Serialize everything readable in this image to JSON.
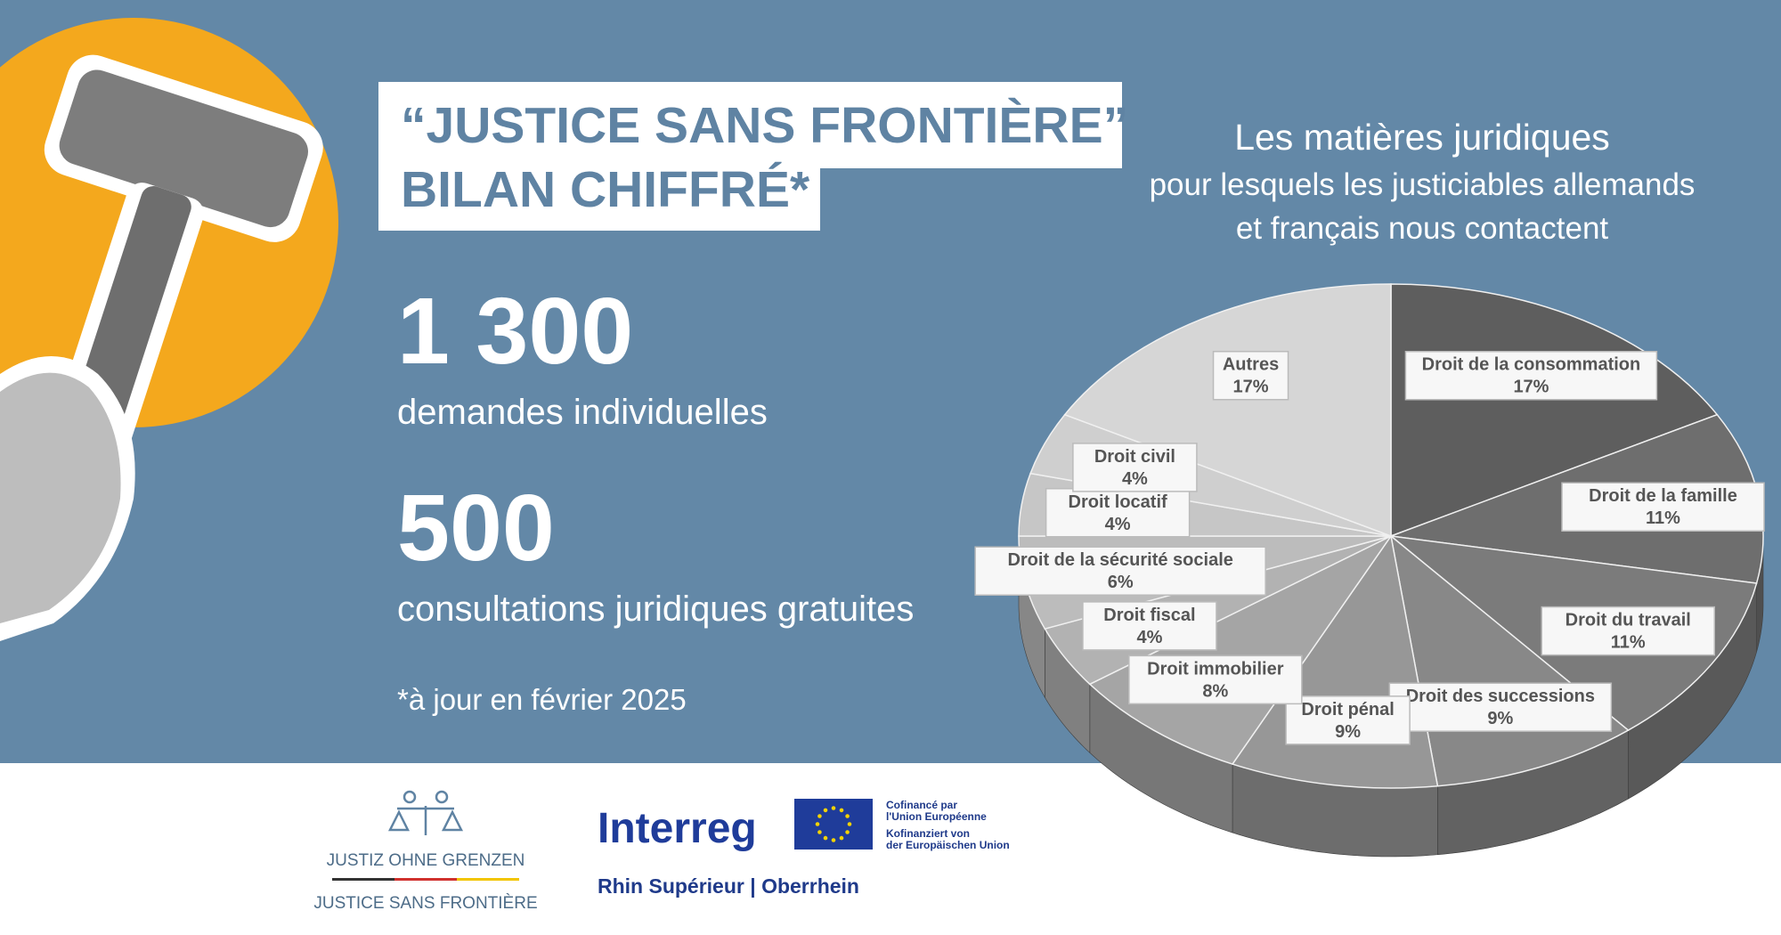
{
  "header": {
    "title_lines": [
      "“JUSTICE SANS FRONTIÈRE”",
      "BILAN CHIFFRÉ*"
    ]
  },
  "stats": [
    {
      "number": "1 300",
      "label": "demandes individuelles"
    },
    {
      "number": "500",
      "label": "consultations juridiques gratuites"
    }
  ],
  "note": "*à jour en février 2025",
  "chart_data": {
    "type": "pie3d",
    "title_lines": [
      "Les matières juridiques",
      "pour lesquels les justiciables allemands",
      "et français nous contactent"
    ],
    "categories": [
      "Droit de la consommation",
      "Droit de la famille",
      "Droit du travail",
      "Droit des successions",
      "Droit pénal",
      "Droit immobilier",
      "Droit fiscal",
      "Droit de la sécurité sociale",
      "Droit locatif",
      "Droit civil",
      "Autres"
    ],
    "values": [
      17,
      11,
      11,
      9,
      9,
      8,
      4,
      6,
      4,
      4,
      17
    ],
    "value_labels": [
      "17%",
      "11%",
      "11%",
      "9%",
      "9%",
      "8%",
      "4%",
      "6%",
      "4%",
      "4%",
      "17%"
    ],
    "colors": [
      "#5e5e5e",
      "#6e6e6e",
      "#7b7b7b",
      "#888888",
      "#979797",
      "#a5a5a5",
      "#b2b2b2",
      "#bcbcbc",
      "#c6c6c6",
      "#cfcfcf",
      "#d6d6d6"
    ]
  },
  "footer": {
    "logo_lines": [
      "JUSTIZ OHNE GRENZEN",
      "JUSTICE SANS FRONTIÈRE"
    ],
    "program": "Interreg",
    "region": "Rhin Supérieur | Oberrhein",
    "eu_lines": [
      "Cofinancé par",
      "l'Union Européenne",
      "Kofinanziert von",
      "der Europäischen Union"
    ]
  }
}
